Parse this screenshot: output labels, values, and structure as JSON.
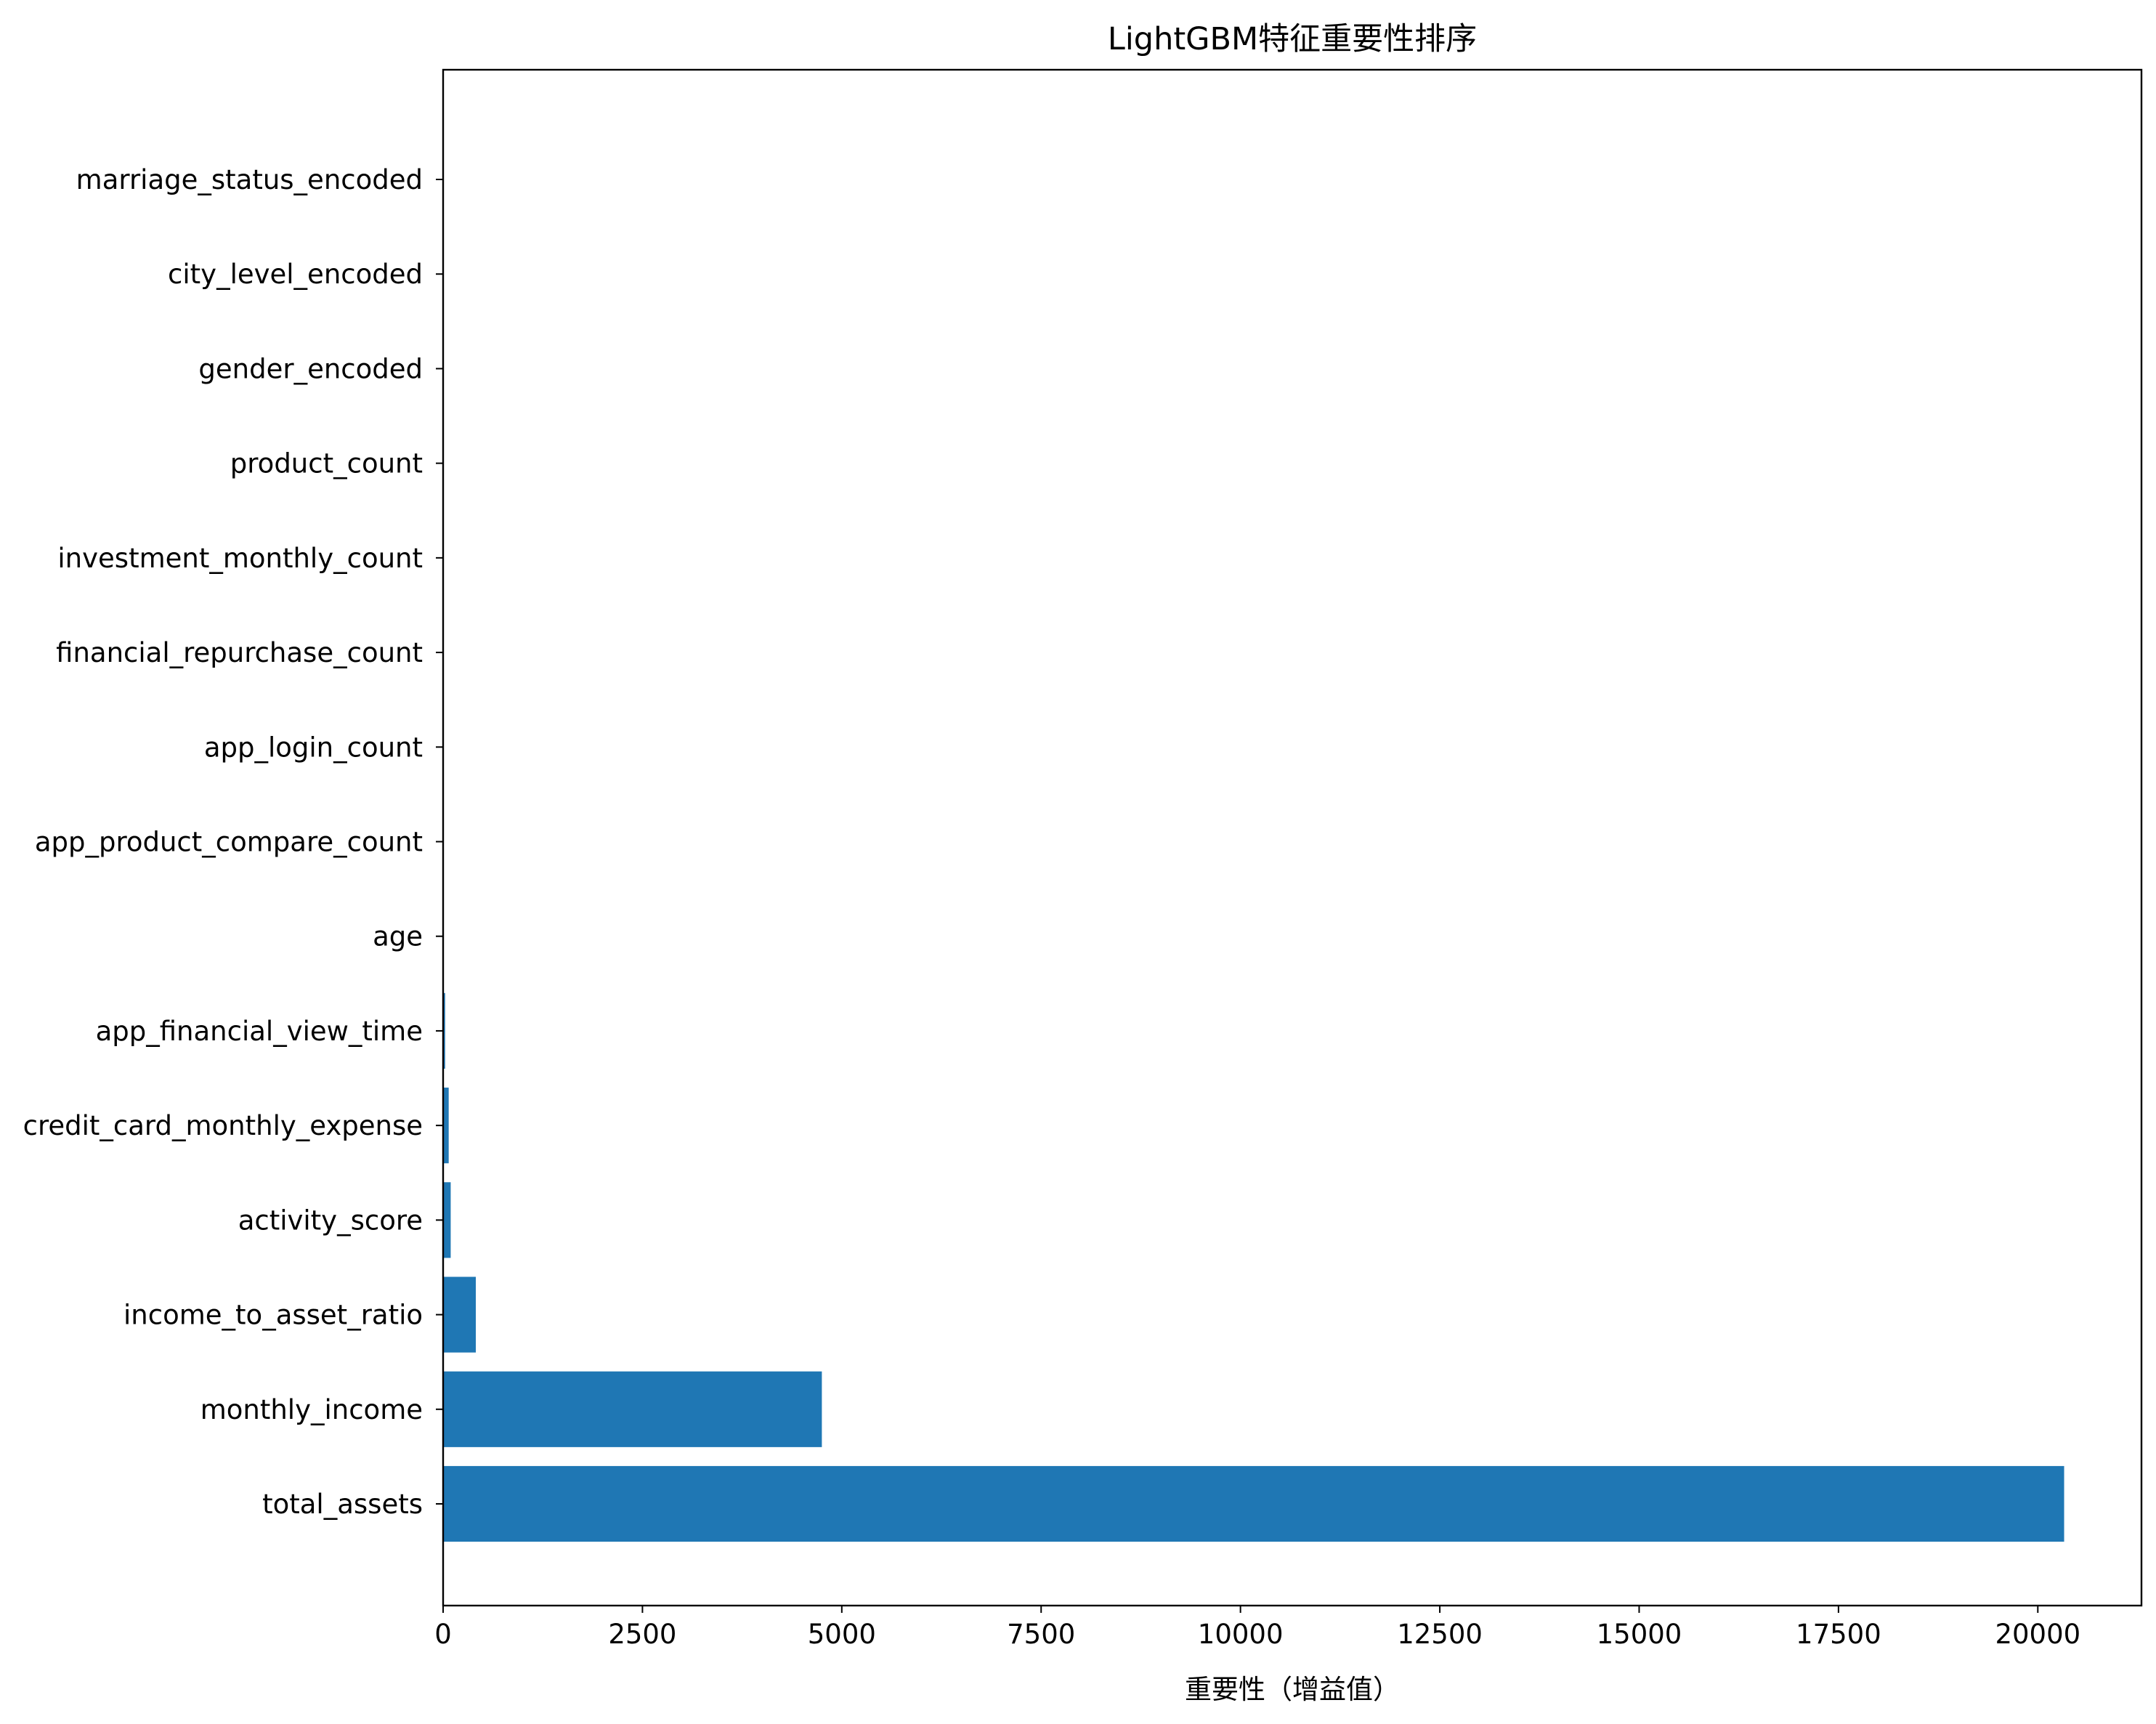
{
  "chart_data": {
    "type": "bar",
    "orientation": "horizontal",
    "title": "LightGBM特征重要性排序",
    "xlabel": "重要性（增益值）",
    "ylabel": "",
    "xlim": [
      0,
      21300
    ],
    "x_ticks": [
      0,
      2500,
      5000,
      7500,
      10000,
      12500,
      15000,
      17500,
      20000
    ],
    "x_tick_labels": [
      "0",
      "2500",
      "5000",
      "7500",
      "10000",
      "12500",
      "15000",
      "17500",
      "20000"
    ],
    "grid": false,
    "legend": "none",
    "bar_color": "#1f77b4",
    "categories": [
      "total_assets",
      "monthly_income",
      "income_to_asset_ratio",
      "activity_score",
      "credit_card_monthly_expense",
      "app_financial_view_time",
      "age",
      "app_product_compare_count",
      "app_login_count",
      "financial_repurchase_count",
      "investment_monthly_count",
      "product_count",
      "gender_encoded",
      "city_level_encoded",
      "marriage_status_encoded"
    ],
    "values": [
      20330,
      4750,
      410,
      95,
      70,
      25,
      0,
      0,
      0,
      0,
      0,
      0,
      0,
      0,
      0
    ]
  }
}
